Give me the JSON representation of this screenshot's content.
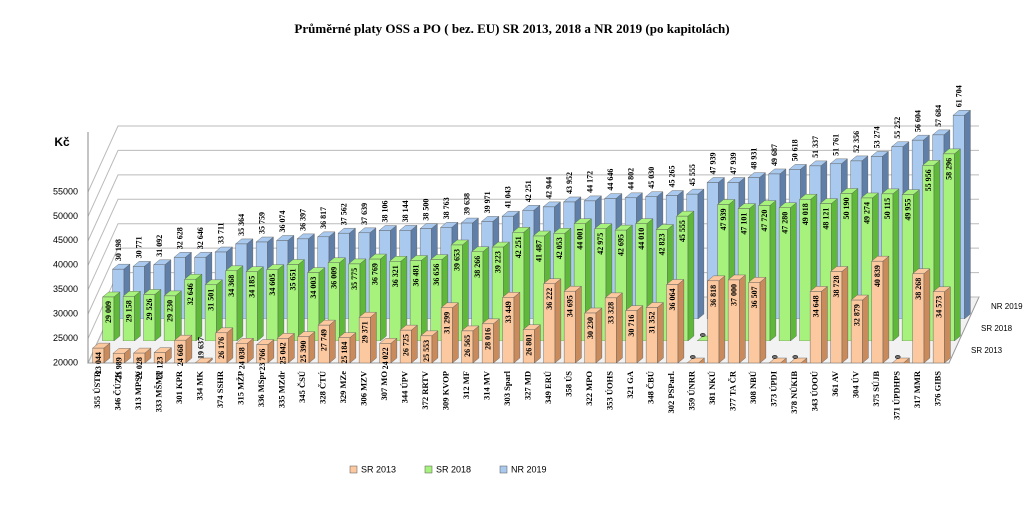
{
  "chart_data": {
    "type": "bar3d",
    "title": "Průměrné platy OSS a PO ( bez. EU)  SR 2013, 2018 a NR 2019 (po kapitolách)",
    "y_label": "Kč",
    "categories": [
      "355 ÚSTR",
      "346 ČÚZK",
      "313 MPSV",
      "333 MŠMT",
      "301 KPR",
      "334 MK",
      "374 SSHR",
      "315 MŽP",
      "336 MSpr",
      "335 MZdr",
      "345 ČSÚ",
      "328 ČTÚ",
      "329 MZe",
      "306 MZV",
      "307 MO",
      "344 ÚPV",
      "372 RRTV",
      "309 KVOP",
      "312 MF",
      "314 MV",
      "303 Sparl",
      "327 MD",
      "349 ERÚ",
      "358 ÚS",
      "322 MPO",
      "353 ÚOHS",
      "321 GA",
      "348 ČBÚ",
      "302 PSParl.",
      "359 ÚNRR",
      "381 NKÚ",
      "377 TA ČR",
      "308 NBÚ",
      "373 ÚPDI",
      "378 NÚKIB",
      "343 ÚOOÚ",
      "361 AV",
      "304 ÚV",
      "375 SÚJB",
      "371 ÚPDHPS",
      "317 MMR",
      "376 GIBS"
    ],
    "series": [
      {
        "name": "SR 2013",
        "color": "#fbc89f",
        "side": "#c98a5c",
        "values": [
          23044,
          21989,
          22028,
          22123,
          24668,
          19637,
          26176,
          24038,
          23766,
          25042,
          25390,
          27749,
          25184,
          29371,
          24022,
          26725,
          25553,
          31299,
          26565,
          28016,
          33449,
          26801,
          36222,
          34695,
          30230,
          33328,
          30716,
          31352,
          36064,
          0,
          36818,
          37000,
          36507,
          0,
          0,
          34648,
          38728,
          32879,
          40839,
          0,
          38268,
          34573
        ],
        "value_labels": [
          "23 044",
          "21 989",
          "22 028",
          "22 123",
          "24 668",
          "19 637",
          "26 176",
          "24 038",
          "23 766",
          "25 042",
          "25 390",
          "27 749",
          "25 184",
          "29 371",
          "24 022",
          "26 725",
          "25 553",
          "31 299",
          "26 565",
          "28 016",
          "33 449",
          "26 801",
          "36 222",
          "34 695",
          "30 230",
          "33 328",
          "30 716",
          "31 352",
          "36 064",
          "0",
          "36 818",
          "37 000",
          "36 507",
          "0",
          "0",
          "34 648",
          "38 728",
          "32 879",
          "40 839",
          "0",
          "38 268",
          "34 573"
        ]
      },
      {
        "name": "SR 2018",
        "color": "#a6f27c",
        "side": "#5fb83a",
        "values": [
          29009,
          29158,
          29526,
          29230,
          32646,
          31501,
          34368,
          34185,
          34605,
          35651,
          34003,
          36009,
          35775,
          36769,
          36321,
          36481,
          36656,
          39653,
          38266,
          39223,
          42251,
          41487,
          42053,
          44001,
          42975,
          42695,
          44010,
          42823,
          45555,
          0,
          47939,
          47101,
          47720,
          47280,
          49018,
          48121,
          50190,
          49274,
          50115,
          49955,
          55956,
          58296
        ],
        "value_labels": [
          "29 009",
          "29 158",
          "29 526",
          "29 230",
          "32 646",
          "31 501",
          "34 368",
          "34 185",
          "34 605",
          "35 651",
          "34 003",
          "36 009",
          "35 775",
          "36 769",
          "36 321",
          "36 481",
          "36 656",
          "39 653",
          "38 266",
          "39 223",
          "42 251",
          "41 487",
          "42 053",
          "44 001",
          "42 975",
          "42 695",
          "44 010",
          "42 823",
          "45 555",
          "0",
          "47 939",
          "47 101",
          "47 720",
          "47 280",
          "49 018",
          "48 121",
          "50 190",
          "49 274",
          "50 115",
          "49 955",
          "55 956",
          "58 296"
        ]
      },
      {
        "name": "NR 2019",
        "color": "#a9c9ef",
        "side": "#5f7fa8",
        "values": [
          30198,
          30771,
          31092,
          32628,
          32646,
          33711,
          35364,
          35759,
          36074,
          36397,
          36817,
          37562,
          37639,
          38106,
          38144,
          38500,
          38763,
          39638,
          39971,
          41043,
          42251,
          42944,
          43952,
          44172,
          44646,
          44802,
          45030,
          45265,
          45555,
          47939,
          47939,
          48931,
          49687,
          50618,
          51337,
          51761,
          52356,
          53274,
          55252,
          56604,
          57684,
          61704
        ],
        "value_labels": [
          "30 198",
          "30 771",
          "31 092",
          "32 628",
          "32 646",
          "33 711",
          "35 364",
          "35 759",
          "36 074",
          "36 397",
          "36 817",
          "37 562",
          "37 639",
          "38 106",
          "38 144",
          "38 500",
          "38 763",
          "39 638",
          "39 971",
          "41 043",
          "42 251",
          "42 944",
          "43 952",
          "44 172",
          "44 646",
          "44 802",
          "45 030",
          "45 265",
          "45 555",
          "47 939",
          "47 939",
          "48 931",
          "49 687",
          "50 618",
          "51 337",
          "51 761",
          "52 356",
          "53 274",
          "55 252",
          "56 604",
          "57 684",
          "61 704"
        ]
      }
    ],
    "ylim": [
      20000,
      55000
    ],
    "yticks": [
      20000,
      25000,
      30000,
      35000,
      40000,
      45000,
      50000,
      55000
    ],
    "grid": true,
    "legend": "bottom"
  }
}
